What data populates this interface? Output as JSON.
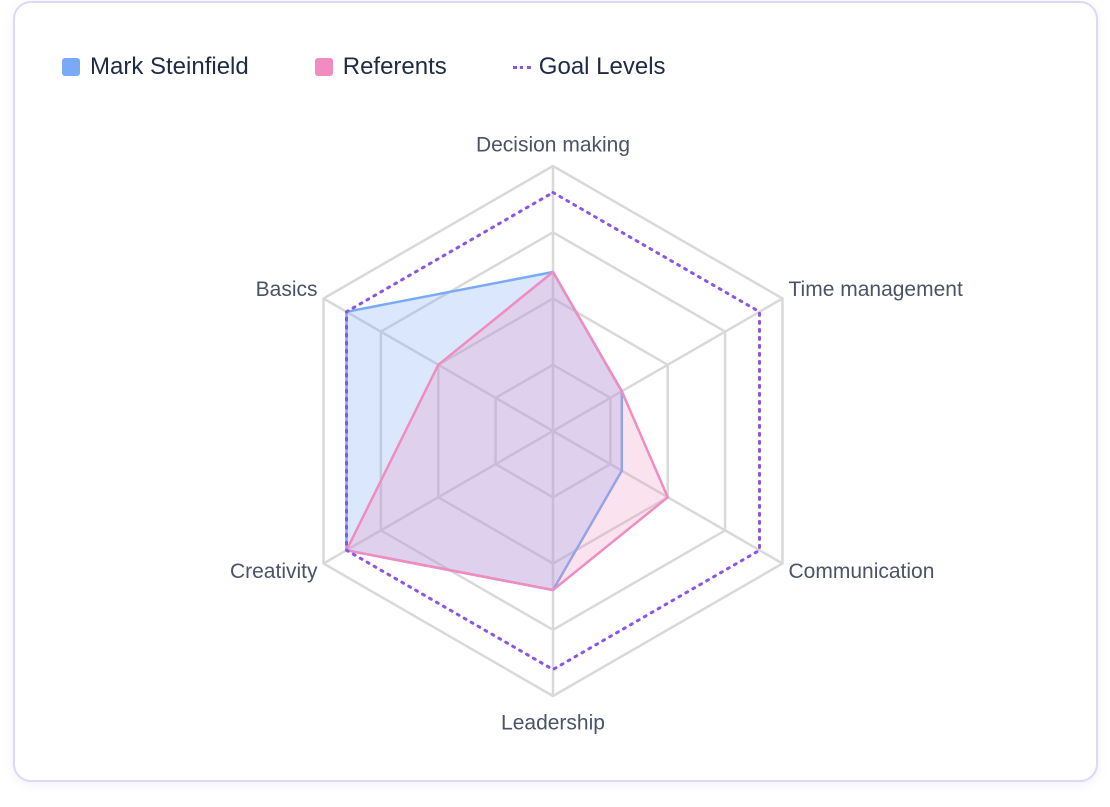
{
  "chart_data": {
    "type": "radar",
    "axes": [
      "Decision making",
      "Time management",
      "Communication",
      "Leadership",
      "Creativity",
      "Basics"
    ],
    "rmax": 4,
    "levels": 4,
    "series": [
      {
        "name": "Mark Steinfield",
        "values": [
          2.4,
          1.2,
          1.2,
          2.4,
          3.6,
          3.6
        ],
        "color": "#7aaaf5",
        "fill": "rgba(122,170,245,0.28)"
      },
      {
        "name": "Referents",
        "values": [
          2.4,
          1.2,
          2.0,
          2.4,
          3.6,
          2.0
        ],
        "color": "#f08cc0",
        "fill": "rgba(240,140,192,0.25)"
      },
      {
        "name": "Goal Levels",
        "values": [
          3.6,
          3.6,
          3.6,
          3.6,
          3.6,
          3.6
        ],
        "color": "#8b55e5",
        "dashed": true
      }
    ],
    "grid": true,
    "legend_position": "top-left"
  }
}
